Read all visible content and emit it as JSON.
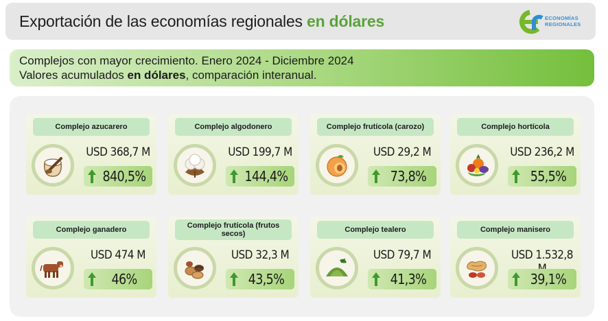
{
  "header": {
    "title_prefix": "Exportación de las economías regionales ",
    "title_accent": "en dólares"
  },
  "logo": {
    "line1": "ECONOMÍAS",
    "line2": "REGIONALES"
  },
  "subtitle": {
    "line1": "Complejos con mayor crecimiento. Enero 2024 - Diciembre 2024",
    "line2_prefix": "Valores acumulados ",
    "line2_bold": "en dólares",
    "line2_suffix": ", comparación interanual."
  },
  "colors": {
    "accent_green": "#5aa33a",
    "card_title_bg": "#c6e7c4",
    "growth_arrow": "#3f9a2e"
  },
  "cards": [
    {
      "title": "Complejo azucarero",
      "icon": "sugar-sack-icon",
      "value": "USD 368,7 M",
      "growth": "840,5%"
    },
    {
      "title": "Complejo algodonero",
      "icon": "cotton-icon",
      "value": "USD 199,7 M",
      "growth": "144,4%"
    },
    {
      "title": "Complejo frutícola (carozo)",
      "icon": "peach-icon",
      "value": "USD 29,2 M",
      "growth": "73,8%"
    },
    {
      "title": "Complejo hortícola",
      "icon": "vegetables-icon",
      "value": "USD 236,2 M",
      "growth": "55,5%"
    },
    {
      "title": "Complejo ganadero",
      "icon": "cow-icon",
      "value": "USD 474 M",
      "growth": "46%"
    },
    {
      "title": "Complejo frutícola (frutos secos)",
      "icon": "nuts-icon",
      "value": "USD 32,3 M",
      "growth": "43,5%"
    },
    {
      "title": "Complejo tealero",
      "icon": "tea-icon",
      "value": "USD 79,7 M",
      "growth": "41,3%"
    },
    {
      "title": "Complejo manisero",
      "icon": "peanut-icon",
      "value": "USD 1.532,8 M",
      "growth": "39,1%"
    }
  ]
}
